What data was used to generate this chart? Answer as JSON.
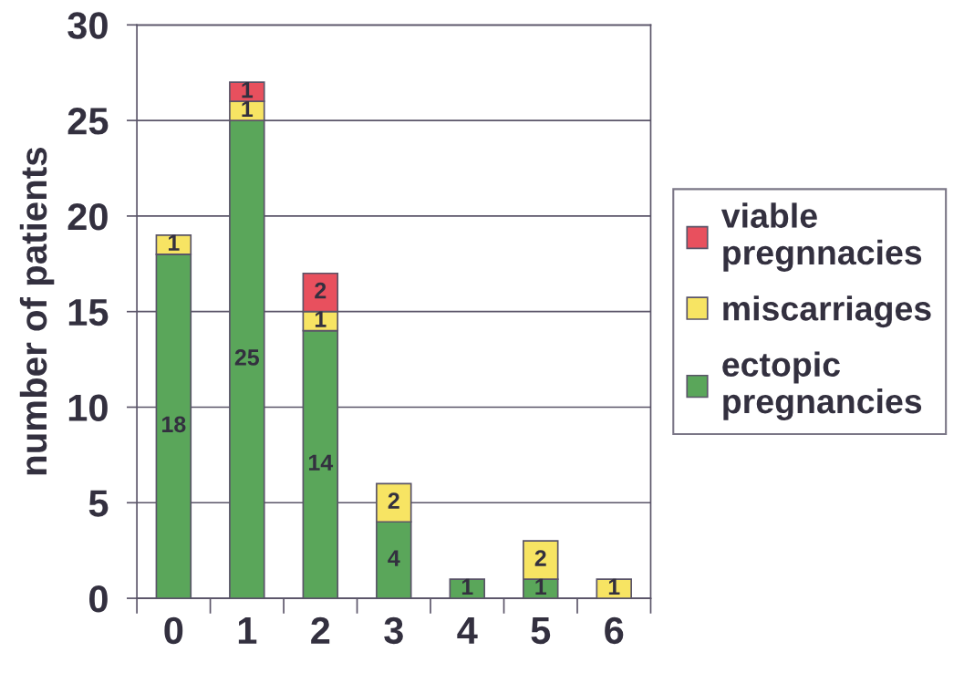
{
  "chart_data": {
    "type": "bar",
    "stacked": true,
    "ylabel": "number of patients",
    "categories": [
      "0",
      "1",
      "2",
      "3",
      "4",
      "5",
      "6"
    ],
    "series": [
      {
        "name": "ectopic pregnancies",
        "color": "#5aa65a",
        "values": [
          18,
          25,
          14,
          4,
          1,
          1,
          null
        ],
        "value_labels": [
          "18",
          "25",
          "14",
          "4",
          "1",
          "1",
          null
        ]
      },
      {
        "name": "miscarriages",
        "color": "#f7e463",
        "values": [
          1,
          1,
          1,
          2,
          null,
          2,
          1
        ],
        "value_labels": [
          "1",
          "1",
          "1",
          "2",
          null,
          "2",
          "1"
        ]
      },
      {
        "name": "viable pregnnacies",
        "color": "#e8505e",
        "values": [
          null,
          1,
          2,
          null,
          null,
          null,
          null
        ],
        "value_labels": [
          null,
          "1",
          "2",
          null,
          null,
          null,
          null
        ]
      }
    ],
    "ylim": [
      0,
      30
    ],
    "yticks": [
      0,
      5,
      10,
      15,
      20,
      25,
      30
    ],
    "grid": "y",
    "legend": "right"
  }
}
